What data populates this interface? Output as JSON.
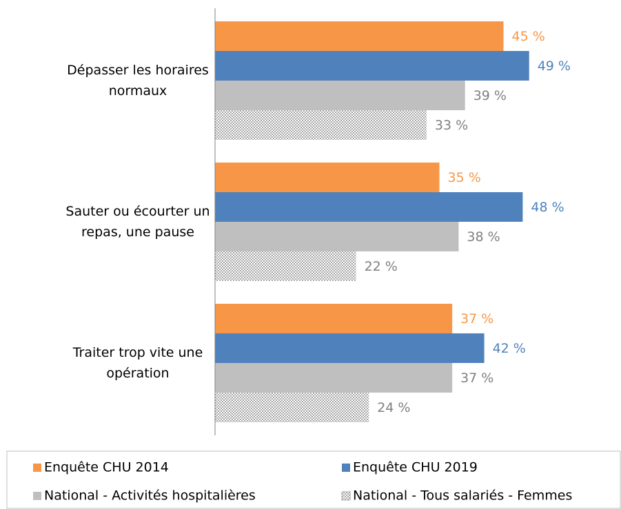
{
  "chart_data": {
    "type": "hbar",
    "categories": [
      "Dépasser les horaires\nnormaux",
      "Sauter ou écourter un\nrepas, une pause",
      "Traiter trop vite une\nopération"
    ],
    "series": [
      {
        "name": "Enquête CHU 2014",
        "color": "#f79646",
        "values": [
          45,
          35,
          37
        ],
        "value_labels": [
          "45 %",
          "35 %",
          "37 %"
        ]
      },
      {
        "name": "Enquête CHU 2019",
        "color": "#4f81bd",
        "values": [
          49,
          48,
          42
        ],
        "value_labels": [
          "49 %",
          "48 %",
          "42 %"
        ]
      },
      {
        "name": "National - Activités hospitalières",
        "color": "#bfbfbf",
        "values": [
          39,
          38,
          37
        ],
        "value_labels": [
          "39 %",
          "38 %",
          "37 %"
        ]
      },
      {
        "name": "National - Tous salariés - Femmes",
        "color": "#bfbfbf",
        "pattern": "checker",
        "values": [
          33,
          22,
          24
        ],
        "value_labels": [
          "33 %",
          "22 %",
          "24 %"
        ]
      }
    ]
  }
}
